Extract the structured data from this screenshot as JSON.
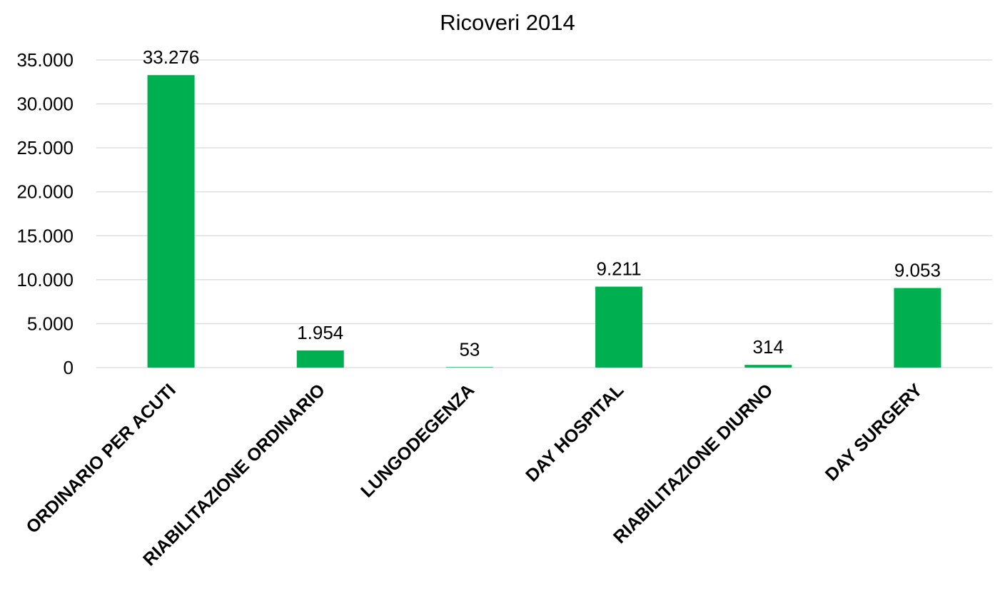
{
  "chart_data": {
    "type": "bar",
    "title": "Ricoveri 2014",
    "xlabel": "",
    "ylabel": "",
    "categories": [
      "ORDINARIO PER ACUTI",
      "RIABILITAZIONE ORDINARIO",
      "LUNGODEGENZA",
      "DAY HOSPITAL",
      "RIABILITAZIONE DIURNO",
      "DAY SURGERY"
    ],
    "values": [
      33276,
      1954,
      53,
      9211,
      314,
      9053
    ],
    "data_labels": [
      "33.276",
      "1.954",
      "53",
      "9.211",
      "314",
      "9.053"
    ],
    "ylim": [
      0,
      35000
    ],
    "yticks": [
      0,
      5000,
      10000,
      15000,
      20000,
      25000,
      30000,
      35000
    ],
    "ytick_labels": [
      "0",
      "5.000",
      "10.000",
      "15.000",
      "20.000",
      "25.000",
      "30.000",
      "35.000"
    ],
    "grid": true,
    "legend": "none",
    "bar_color": "#00b050",
    "grid_color": "#d9d9d9"
  }
}
